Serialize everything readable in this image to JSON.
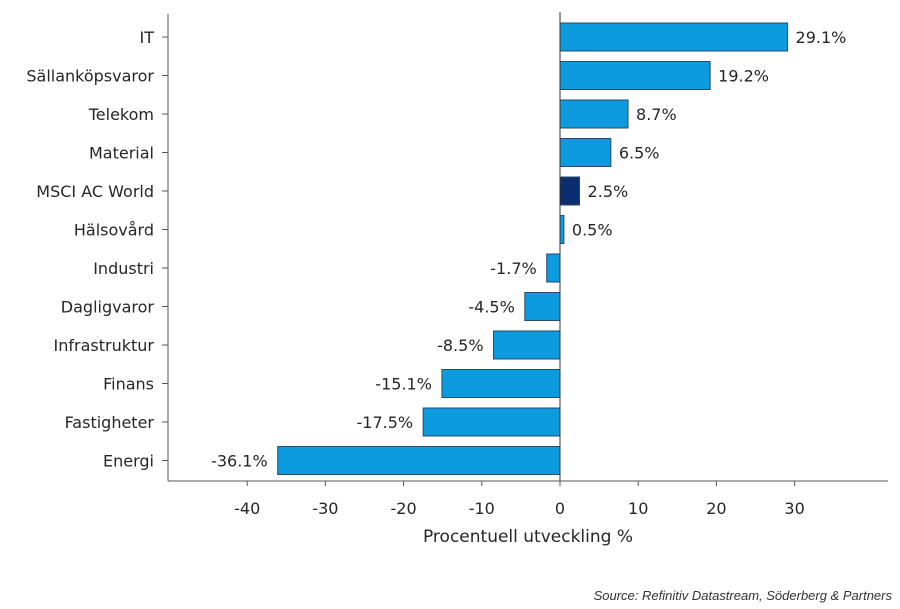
{
  "chart_data": {
    "type": "bar",
    "orientation": "horizontal",
    "categories": [
      "IT",
      "Sällanköpsvaror",
      "Telekom",
      "Material",
      "MSCI AC World",
      "Hälsovård",
      "Industri",
      "Dagligvaror",
      "Infrastruktur",
      "Finans",
      "Fastigheter",
      "Energi"
    ],
    "values": [
      29.1,
      19.2,
      8.7,
      6.5,
      2.5,
      0.5,
      -1.7,
      -4.5,
      -8.5,
      -15.1,
      -17.5,
      -36.1
    ],
    "value_labels": [
      "29.1%",
      "19.2%",
      "8.7%",
      "6.5%",
      "2.5%",
      "0.5%",
      "-1.7%",
      "-4.5%",
      "-8.5%",
      "-15.1%",
      "-17.5%",
      "-36.1%"
    ],
    "highlight_category": "MSCI AC World",
    "xlabel": "Procentuell utveckling %",
    "ylabel": "",
    "title": "",
    "xlim": [
      -50,
      42
    ],
    "xticks": [
      -40,
      -30,
      -20,
      -10,
      0,
      10,
      20,
      30
    ],
    "grid": false,
    "colors": {
      "bar": "#0b9bde",
      "highlight": "#0c2d6e",
      "outline": "#2a4a66",
      "axis": "#555555"
    }
  },
  "source": "Source: Refinitiv Datastream, Söderberg & Partners"
}
